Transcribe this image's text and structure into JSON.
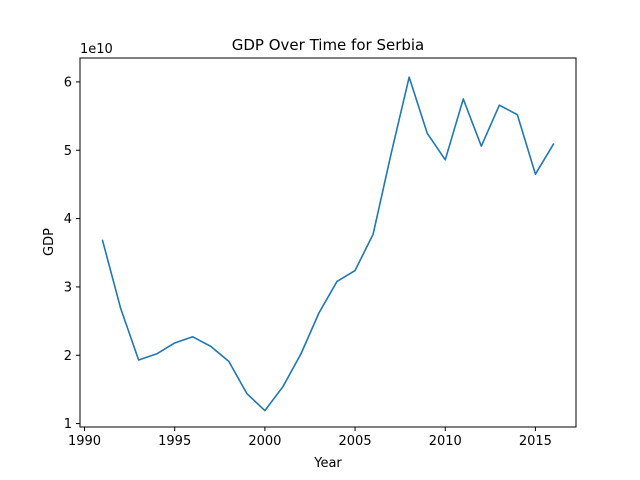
{
  "chart_data": {
    "type": "line",
    "title": "GDP Over Time for Serbia",
    "xlabel": "Year",
    "ylabel": "GDP",
    "y_offset_label": "1e10",
    "xlim": [
      1989.75,
      2017.25
    ],
    "ylim": [
      0.95,
      6.35
    ],
    "x_ticks": [
      1990,
      1995,
      2000,
      2005,
      2010,
      2015
    ],
    "y_ticks": [
      1,
      2,
      3,
      4,
      5,
      6
    ],
    "grid": false,
    "line_color": "#1f77b4",
    "series": [
      {
        "x": [
          1991,
          1992,
          1993,
          1994,
          1995,
          1996,
          1997,
          1998,
          1999,
          2000,
          2001,
          2002,
          2003,
          2004,
          2005,
          2006,
          2007,
          2008,
          2009,
          2010,
          2011,
          2012,
          2013,
          2014,
          2015,
          2016
        ],
        "values": [
          3.68,
          2.69,
          1.93,
          2.02,
          2.18,
          2.27,
          2.13,
          1.91,
          1.44,
          1.19,
          1.54,
          2.02,
          2.62,
          3.08,
          3.24,
          3.77,
          4.95,
          6.07,
          5.25,
          4.86,
          5.75,
          5.06,
          5.66,
          5.52,
          4.65,
          5.09
        ]
      }
    ]
  }
}
